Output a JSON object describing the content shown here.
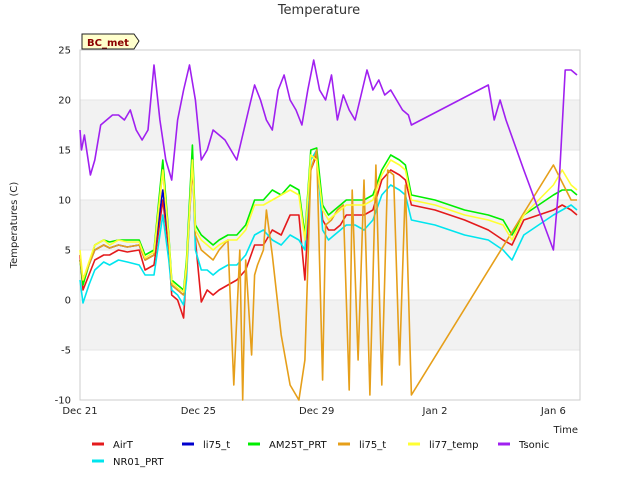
{
  "chart_data": {
    "type": "line",
    "title": "Temperature",
    "xlabel": "Time",
    "ylabel": "Temperatures (C)",
    "badge": "BC_met",
    "x_ticks": [
      {
        "day": 0,
        "label": "Dec 21"
      },
      {
        "day": 4,
        "label": "Dec 25"
      },
      {
        "day": 8,
        "label": "Dec 29"
      },
      {
        "day": 12,
        "label": "Jan 2"
      },
      {
        "day": 16,
        "label": "Jan 6"
      }
    ],
    "y_ticks": [
      -10,
      -5,
      0,
      5,
      10,
      15,
      20,
      25
    ],
    "xlim": [
      0,
      16.9
    ],
    "ylim": [
      -10,
      25
    ],
    "grid": "horizontal-bands",
    "legend_position": "bottom",
    "series": [
      {
        "name": "AirT",
        "color": "#e41a1c",
        "x": [
          0,
          0.1,
          0.3,
          0.5,
          0.8,
          1.0,
          1.3,
          1.6,
          2.0,
          2.2,
          2.5,
          2.8,
          3.0,
          3.1,
          3.3,
          3.5,
          3.6,
          3.8,
          3.9,
          4.1,
          4.3,
          4.5,
          4.7,
          5.0,
          5.3,
          5.6,
          5.9,
          6.2,
          6.5,
          6.8,
          7.1,
          7.4,
          7.6,
          7.8,
          8.0,
          8.2,
          8.4,
          8.6,
          8.8,
          9.0,
          9.3,
          9.6,
          9.9,
          10.2,
          10.5,
          10.8,
          11.0,
          11.2,
          12.0,
          13.0,
          13.8,
          14.3,
          14.6,
          15.0,
          15.5,
          16.0,
          16.3,
          16.6,
          16.8
        ],
        "y": [
          4.5,
          1.0,
          2.5,
          4.0,
          4.5,
          4.5,
          5.0,
          4.8,
          5.0,
          3.0,
          3.5,
          10.0,
          5.0,
          0.5,
          0.0,
          -1.8,
          3.0,
          13.5,
          6.0,
          -0.2,
          1.0,
          0.5,
          1.0,
          1.5,
          2.0,
          3.0,
          5.5,
          5.5,
          7.0,
          6.5,
          8.5,
          8.5,
          2.0,
          13.0,
          14.5,
          8.0,
          7.0,
          7.0,
          7.5,
          8.5,
          8.5,
          8.5,
          9.0,
          12.0,
          13.0,
          12.5,
          12.0,
          9.5,
          9.0,
          8.0,
          7.0,
          6.0,
          5.5,
          8.0,
          8.5,
          9.0,
          9.5,
          9.0,
          8.5
        ]
      },
      {
        "name": "NR01_PRT",
        "color": "#00e5ee",
        "x": [
          0,
          0.1,
          0.3,
          0.5,
          0.8,
          1.0,
          1.3,
          1.6,
          2.0,
          2.2,
          2.5,
          2.8,
          3.0,
          3.1,
          3.3,
          3.5,
          3.6,
          3.8,
          3.9,
          4.1,
          4.3,
          4.5,
          4.7,
          5.0,
          5.3,
          5.6,
          5.9,
          6.2,
          6.5,
          6.8,
          7.1,
          7.4,
          7.6,
          7.8,
          8.0,
          8.2,
          8.4,
          8.6,
          8.8,
          9.0,
          9.3,
          9.6,
          9.9,
          10.2,
          10.5,
          10.8,
          11.0,
          11.2,
          12.0,
          13.0,
          13.8,
          14.3,
          14.6,
          15.0,
          15.5,
          16.0,
          16.3,
          16.6,
          16.8
        ],
        "y": [
          2.0,
          -0.3,
          1.5,
          3.0,
          3.8,
          3.5,
          4.0,
          3.8,
          3.5,
          2.5,
          2.5,
          8.5,
          4.0,
          1.0,
          0.5,
          -0.5,
          2.0,
          14.5,
          5.0,
          3.0,
          3.0,
          2.5,
          3.0,
          3.5,
          3.5,
          4.5,
          6.5,
          7.0,
          6.0,
          5.5,
          6.5,
          6.0,
          5.0,
          14.0,
          15.0,
          7.0,
          6.0,
          6.5,
          7.0,
          7.5,
          7.5,
          7.0,
          8.0,
          10.5,
          11.5,
          11.0,
          10.5,
          8.0,
          7.5,
          6.5,
          6.0,
          5.0,
          4.0,
          6.5,
          7.5,
          8.5,
          9.0,
          9.5,
          9.0
        ]
      },
      {
        "name": "li75_t",
        "color": "#0000cd",
        "x": [
          0,
          0.1,
          0.3,
          0.5,
          0.8,
          1.0,
          1.3,
          1.6,
          2.0,
          2.2,
          2.5,
          2.8,
          3.0,
          3.1,
          3.3,
          3.5
        ],
        "y": [
          4.0,
          2.0,
          3.5,
          5.0,
          5.5,
          5.2,
          5.5,
          5.3,
          5.5,
          4.0,
          4.5,
          11.0,
          6.0,
          1.5,
          1.0,
          0.5
        ]
      },
      {
        "name": "AM25T_PRT",
        "color": "#00ee00",
        "x": [
          0,
          0.1,
          0.3,
          0.5,
          0.8,
          1.0,
          1.3,
          1.6,
          2.0,
          2.2,
          2.5,
          2.8,
          3.0,
          3.1,
          3.3,
          3.5,
          3.6,
          3.8,
          3.9,
          4.1,
          4.3,
          4.5,
          4.7,
          5.0,
          5.3,
          5.6,
          5.9,
          6.2,
          6.5,
          6.8,
          7.1,
          7.4,
          7.6,
          7.8,
          8.0,
          8.2,
          8.4,
          8.6,
          8.8,
          9.0,
          9.3,
          9.6,
          9.9,
          10.2,
          10.5,
          10.8,
          11.0,
          11.2,
          12.0,
          13.0,
          13.8,
          14.3,
          14.6,
          15.0,
          15.5,
          16.0,
          16.3,
          16.6,
          16.8
        ],
        "y": [
          4.0,
          1.5,
          3.5,
          5.5,
          6.0,
          5.8,
          6.0,
          6.0,
          6.0,
          4.5,
          5.0,
          14.0,
          6.5,
          2.0,
          1.5,
          1.0,
          4.0,
          15.5,
          7.5,
          6.5,
          6.0,
          5.5,
          6.0,
          6.5,
          6.5,
          7.5,
          10.0,
          10.0,
          11.0,
          10.5,
          11.5,
          11.0,
          6.5,
          15.0,
          15.2,
          9.5,
          8.5,
          9.0,
          9.5,
          10.0,
          10.0,
          10.0,
          10.5,
          13.0,
          14.5,
          14.0,
          13.5,
          10.5,
          10.0,
          9.0,
          8.5,
          8.0,
          6.5,
          8.5,
          9.5,
          10.5,
          11.0,
          11.0,
          10.5
        ]
      },
      {
        "name": "li75_t",
        "color": "#e69f1a",
        "x": [
          0,
          0.1,
          0.3,
          0.5,
          0.8,
          1.0,
          1.3,
          1.6,
          2.0,
          2.2,
          2.5,
          2.8,
          3.0,
          3.1,
          3.3,
          3.5,
          3.6,
          3.8,
          3.9,
          4.1,
          4.3,
          4.5,
          4.7,
          5.0,
          5.2,
          5.4,
          5.5,
          5.6,
          5.8,
          5.9,
          6.0,
          6.2,
          6.3,
          6.5,
          6.8,
          7.1,
          7.4,
          7.6,
          7.8,
          8.0,
          8.2,
          8.3,
          8.5,
          8.7,
          8.9,
          9.1,
          9.2,
          9.4,
          9.6,
          9.8,
          10.0,
          10.2,
          10.4,
          10.6,
          10.8,
          11.0,
          11.2,
          16.0,
          16.6,
          16.8
        ],
        "y": [
          4.0,
          2.0,
          3.5,
          5.0,
          5.5,
          5.2,
          5.5,
          5.3,
          5.5,
          4.0,
          4.5,
          13.0,
          6.0,
          1.5,
          1.0,
          0.5,
          3.0,
          14.0,
          6.5,
          5.0,
          4.5,
          4.0,
          5.0,
          6.0,
          -8.5,
          5.0,
          -10.0,
          4.0,
          -5.5,
          2.5,
          3.5,
          5.0,
          9.0,
          4.5,
          -3.5,
          -8.5,
          -10.0,
          -6.0,
          13.0,
          15.0,
          -8.0,
          7.5,
          8.0,
          9.0,
          9.5,
          -9.0,
          11.0,
          -6.0,
          12.0,
          -9.5,
          13.5,
          -8.5,
          13.0,
          12.5,
          -6.5,
          11.5,
          -9.5,
          13.5,
          10.0,
          10.0
        ]
      },
      {
        "name": "li77_temp",
        "color": "#ffff33",
        "x": [
          0,
          0.1,
          0.3,
          0.5,
          0.8,
          1.0,
          1.3,
          1.6,
          2.0,
          2.2,
          2.5,
          2.8,
          3.0,
          3.1,
          3.3,
          3.5,
          3.6,
          3.8,
          3.9,
          4.1,
          4.3,
          4.5,
          4.7,
          5.0,
          5.3,
          5.6,
          5.9,
          6.2,
          6.5,
          6.8,
          7.1,
          7.4,
          7.6,
          7.8,
          8.0,
          8.2,
          8.4,
          8.6,
          8.8,
          9.0,
          9.3,
          9.6,
          9.9,
          10.2,
          10.5,
          10.8,
          11.0,
          11.2,
          12.0,
          13.0,
          13.8,
          14.3,
          14.6,
          15.0,
          15.5,
          16.0,
          16.3,
          16.6,
          16.8
        ],
        "y": [
          5.0,
          2.0,
          3.8,
          5.5,
          6.0,
          5.5,
          6.0,
          5.8,
          5.8,
          4.2,
          4.8,
          13.0,
          6.2,
          1.8,
          1.2,
          0.8,
          3.5,
          14.0,
          7.0,
          6.0,
          5.5,
          5.0,
          5.5,
          6.0,
          6.0,
          7.0,
          9.5,
          9.5,
          10.0,
          10.5,
          11.0,
          10.5,
          6.0,
          14.5,
          14.0,
          9.0,
          8.0,
          8.5,
          9.0,
          9.5,
          9.5,
          9.5,
          10.0,
          12.5,
          14.0,
          13.5,
          13.0,
          10.0,
          9.5,
          8.5,
          8.0,
          7.5,
          6.0,
          8.5,
          10.0,
          11.5,
          13.0,
          11.5,
          11.0
        ]
      },
      {
        "name": "Tsonic",
        "color": "#a020f0",
        "x": [
          0,
          0.05,
          0.15,
          0.25,
          0.35,
          0.5,
          0.7,
          0.9,
          1.1,
          1.3,
          1.5,
          1.7,
          1.9,
          2.1,
          2.3,
          2.5,
          2.7,
          2.9,
          3.1,
          3.3,
          3.5,
          3.7,
          3.9,
          4.1,
          4.3,
          4.5,
          4.7,
          4.9,
          5.1,
          5.3,
          5.5,
          5.7,
          5.9,
          6.1,
          6.3,
          6.5,
          6.7,
          6.9,
          7.1,
          7.3,
          7.5,
          7.7,
          7.9,
          8.1,
          8.3,
          8.5,
          8.7,
          8.9,
          9.1,
          9.3,
          9.5,
          9.7,
          9.9,
          10.1,
          10.3,
          10.5,
          10.7,
          10.9,
          11.1,
          11.2,
          13.8,
          14.0,
          14.2,
          14.4,
          15.0,
          15.5,
          16.0,
          16.2,
          16.4,
          16.6,
          16.8
        ],
        "y": [
          17.0,
          15.0,
          16.5,
          14.5,
          12.5,
          14.0,
          17.5,
          18.0,
          18.5,
          18.5,
          18.0,
          19.0,
          17.0,
          16.0,
          17.0,
          23.5,
          18.0,
          14.0,
          12.0,
          18.0,
          21.0,
          23.5,
          20.0,
          14.0,
          15.0,
          17.0,
          16.5,
          16.0,
          15.0,
          14.0,
          16.5,
          19.0,
          21.5,
          20.0,
          18.0,
          17.0,
          21.0,
          22.5,
          20.0,
          19.0,
          17.5,
          21.0,
          24.0,
          21.0,
          20.0,
          22.5,
          18.0,
          20.5,
          19.0,
          18.0,
          20.5,
          23.0,
          21.0,
          22.0,
          20.5,
          21.0,
          20.0,
          19.0,
          18.5,
          17.5,
          21.5,
          18.0,
          20.0,
          18.0,
          13.0,
          9.0,
          5.0,
          12.0,
          23.0,
          23.0,
          22.5
        ]
      }
    ],
    "legend": [
      {
        "name": "AirT",
        "color": "#e41a1c"
      },
      {
        "name": "li75_t",
        "color": "#0000cd"
      },
      {
        "name": "AM25T_PRT",
        "color": "#00ee00"
      },
      {
        "name": "li75_t",
        "color": "#e69f1a"
      },
      {
        "name": "li77_temp",
        "color": "#ffff33"
      },
      {
        "name": "Tsonic",
        "color": "#a020f0"
      },
      {
        "name": "NR01_PRT",
        "color": "#00e5ee"
      }
    ]
  }
}
